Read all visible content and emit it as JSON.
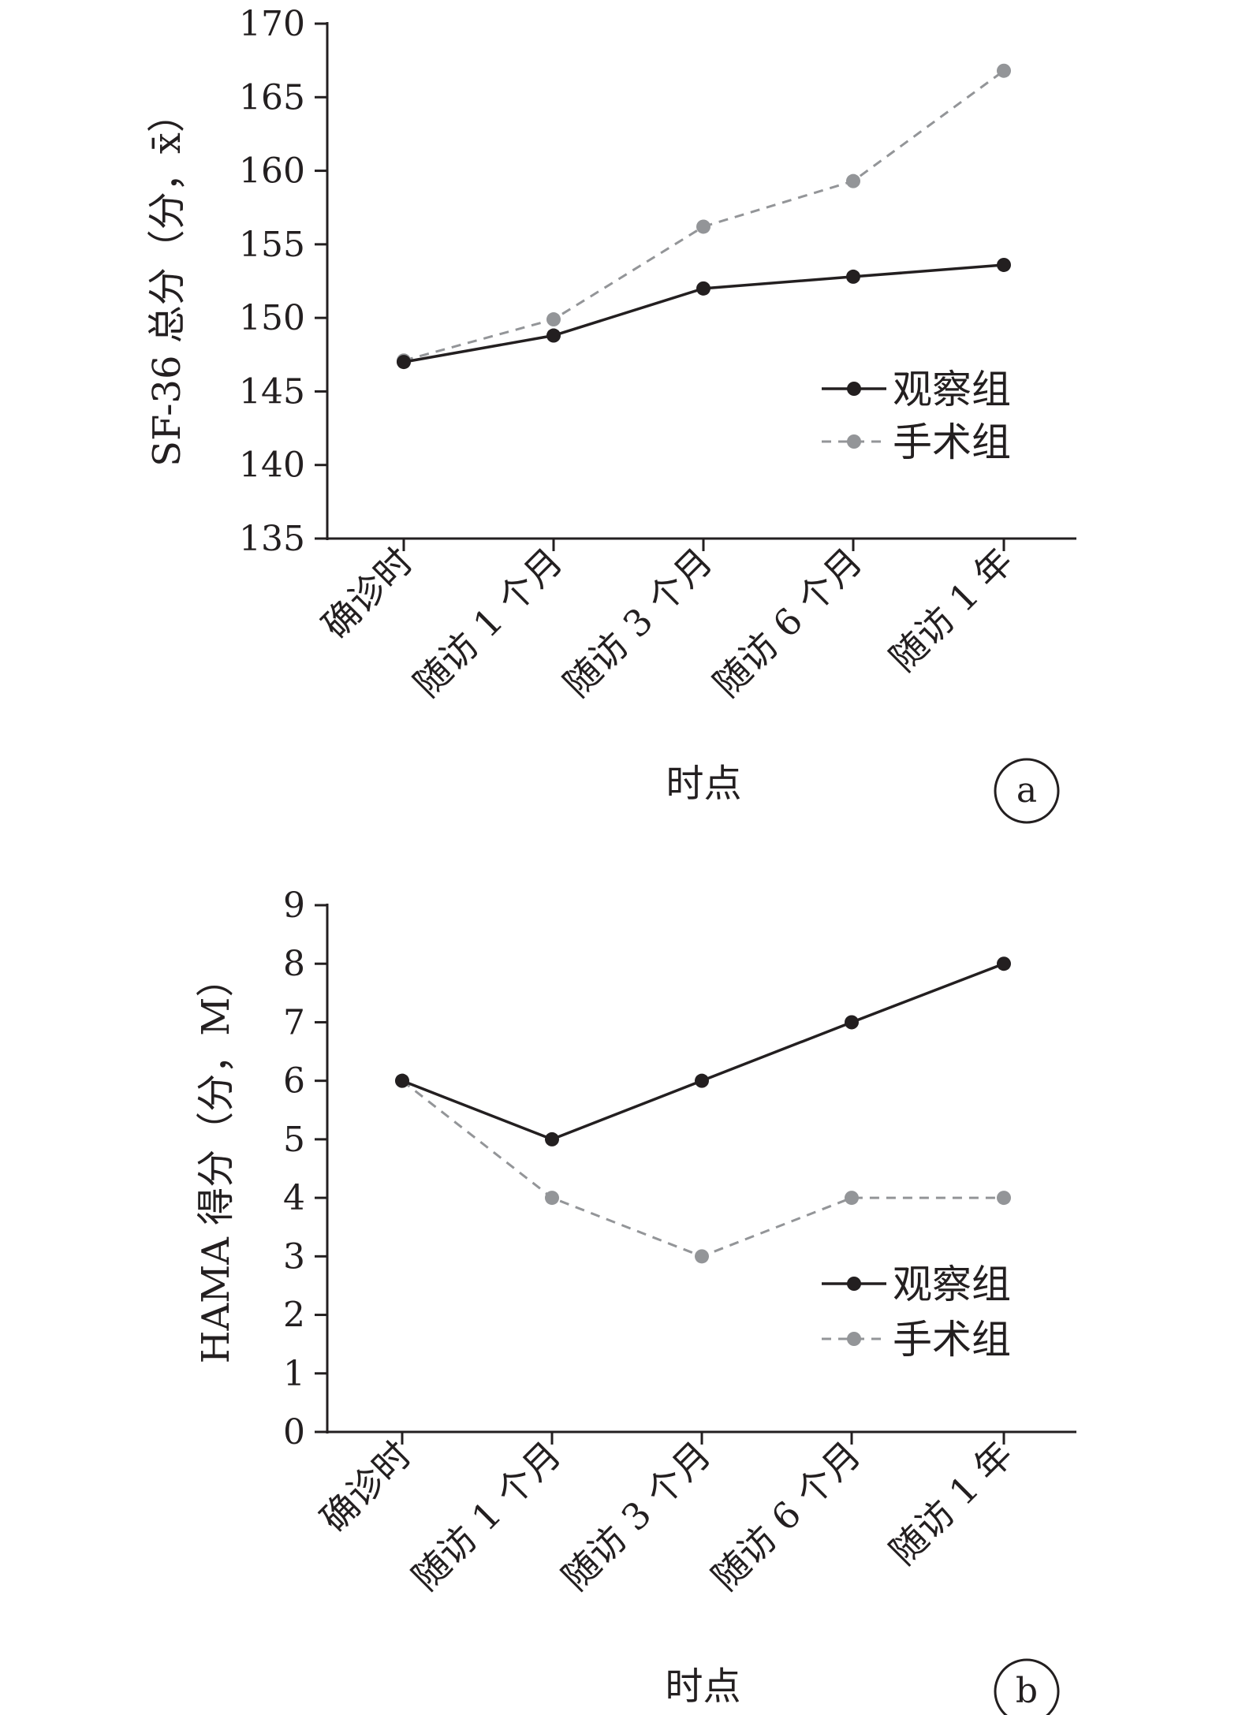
{
  "chart_data": [
    {
      "type": "line",
      "panel_label": "a",
      "ylabel": "SF-36 总分（分，x̄）",
      "xlabel": "时点",
      "categories": [
        "确诊时",
        "随访 1 个月",
        "随访 3 个月",
        "随访 6 个月",
        "随访 1 年"
      ],
      "ylim": [
        135,
        170
      ],
      "yticks": [
        135,
        140,
        145,
        150,
        155,
        160,
        165,
        170
      ],
      "grid": false,
      "legend_position": "right",
      "series": [
        {
          "name": "观察组",
          "color": "#231f20",
          "dashed": false,
          "values": [
            147.0,
            148.8,
            152.0,
            152.8,
            153.6
          ]
        },
        {
          "name": "手术组",
          "color": "#939598",
          "dashed": true,
          "values": [
            147.1,
            149.9,
            156.2,
            159.3,
            166.8
          ]
        }
      ]
    },
    {
      "type": "line",
      "panel_label": "b",
      "ylabel": "HAMA 得分（分，M）",
      "xlabel": "时点",
      "categories": [
        "确诊时",
        "随访 1 个月",
        "随访 3 个月",
        "随访 6 个月",
        "随访 1 年"
      ],
      "ylim": [
        0,
        9
      ],
      "yticks": [
        0,
        1,
        2,
        3,
        4,
        5,
        6,
        7,
        8,
        9
      ],
      "grid": false,
      "legend_position": "right",
      "series": [
        {
          "name": "观察组",
          "color": "#231f20",
          "dashed": false,
          "values": [
            6,
            5,
            6,
            7,
            8
          ]
        },
        {
          "name": "手术组",
          "color": "#939598",
          "dashed": true,
          "values": [
            6,
            4,
            3,
            4,
            4
          ]
        }
      ]
    }
  ]
}
